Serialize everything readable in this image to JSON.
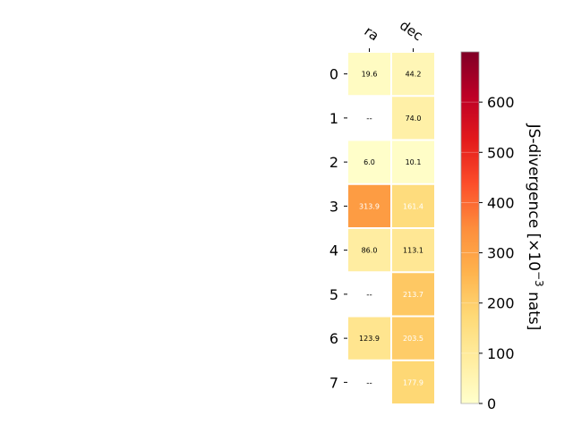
{
  "chart_data": {
    "type": "heatmap",
    "columns": [
      "ra",
      "dec"
    ],
    "rows": [
      "0",
      "1",
      "2",
      "3",
      "4",
      "5",
      "6",
      "7"
    ],
    "values": [
      [
        19.6,
        44.2
      ],
      [
        null,
        74.0
      ],
      [
        6.0,
        10.1
      ],
      [
        313.9,
        161.4
      ],
      [
        86.0,
        113.1
      ],
      [
        null,
        213.7
      ],
      [
        123.9,
        203.5
      ],
      [
        null,
        177.9
      ]
    ],
    "labels": [
      [
        "19.6",
        "44.2"
      ],
      [
        "--",
        "74.0"
      ],
      [
        "6.0",
        "10.1"
      ],
      [
        "313.9",
        "161.4"
      ],
      [
        "86.0",
        "113.1"
      ],
      [
        "--",
        "213.7"
      ],
      [
        "123.9",
        "203.5"
      ],
      [
        "--",
        "177.9"
      ]
    ],
    "colorbar": {
      "label": "JS-divergence [×10",
      "label_exponent": "−3",
      "label_suffix": " nats]",
      "min": 0,
      "max": 700,
      "ticks": [
        0,
        100,
        200,
        300,
        400,
        500,
        600
      ],
      "tick_labels": [
        "0",
        "100",
        "200",
        "300",
        "400",
        "500",
        "600"
      ],
      "colormap": "YlOrRd"
    }
  }
}
